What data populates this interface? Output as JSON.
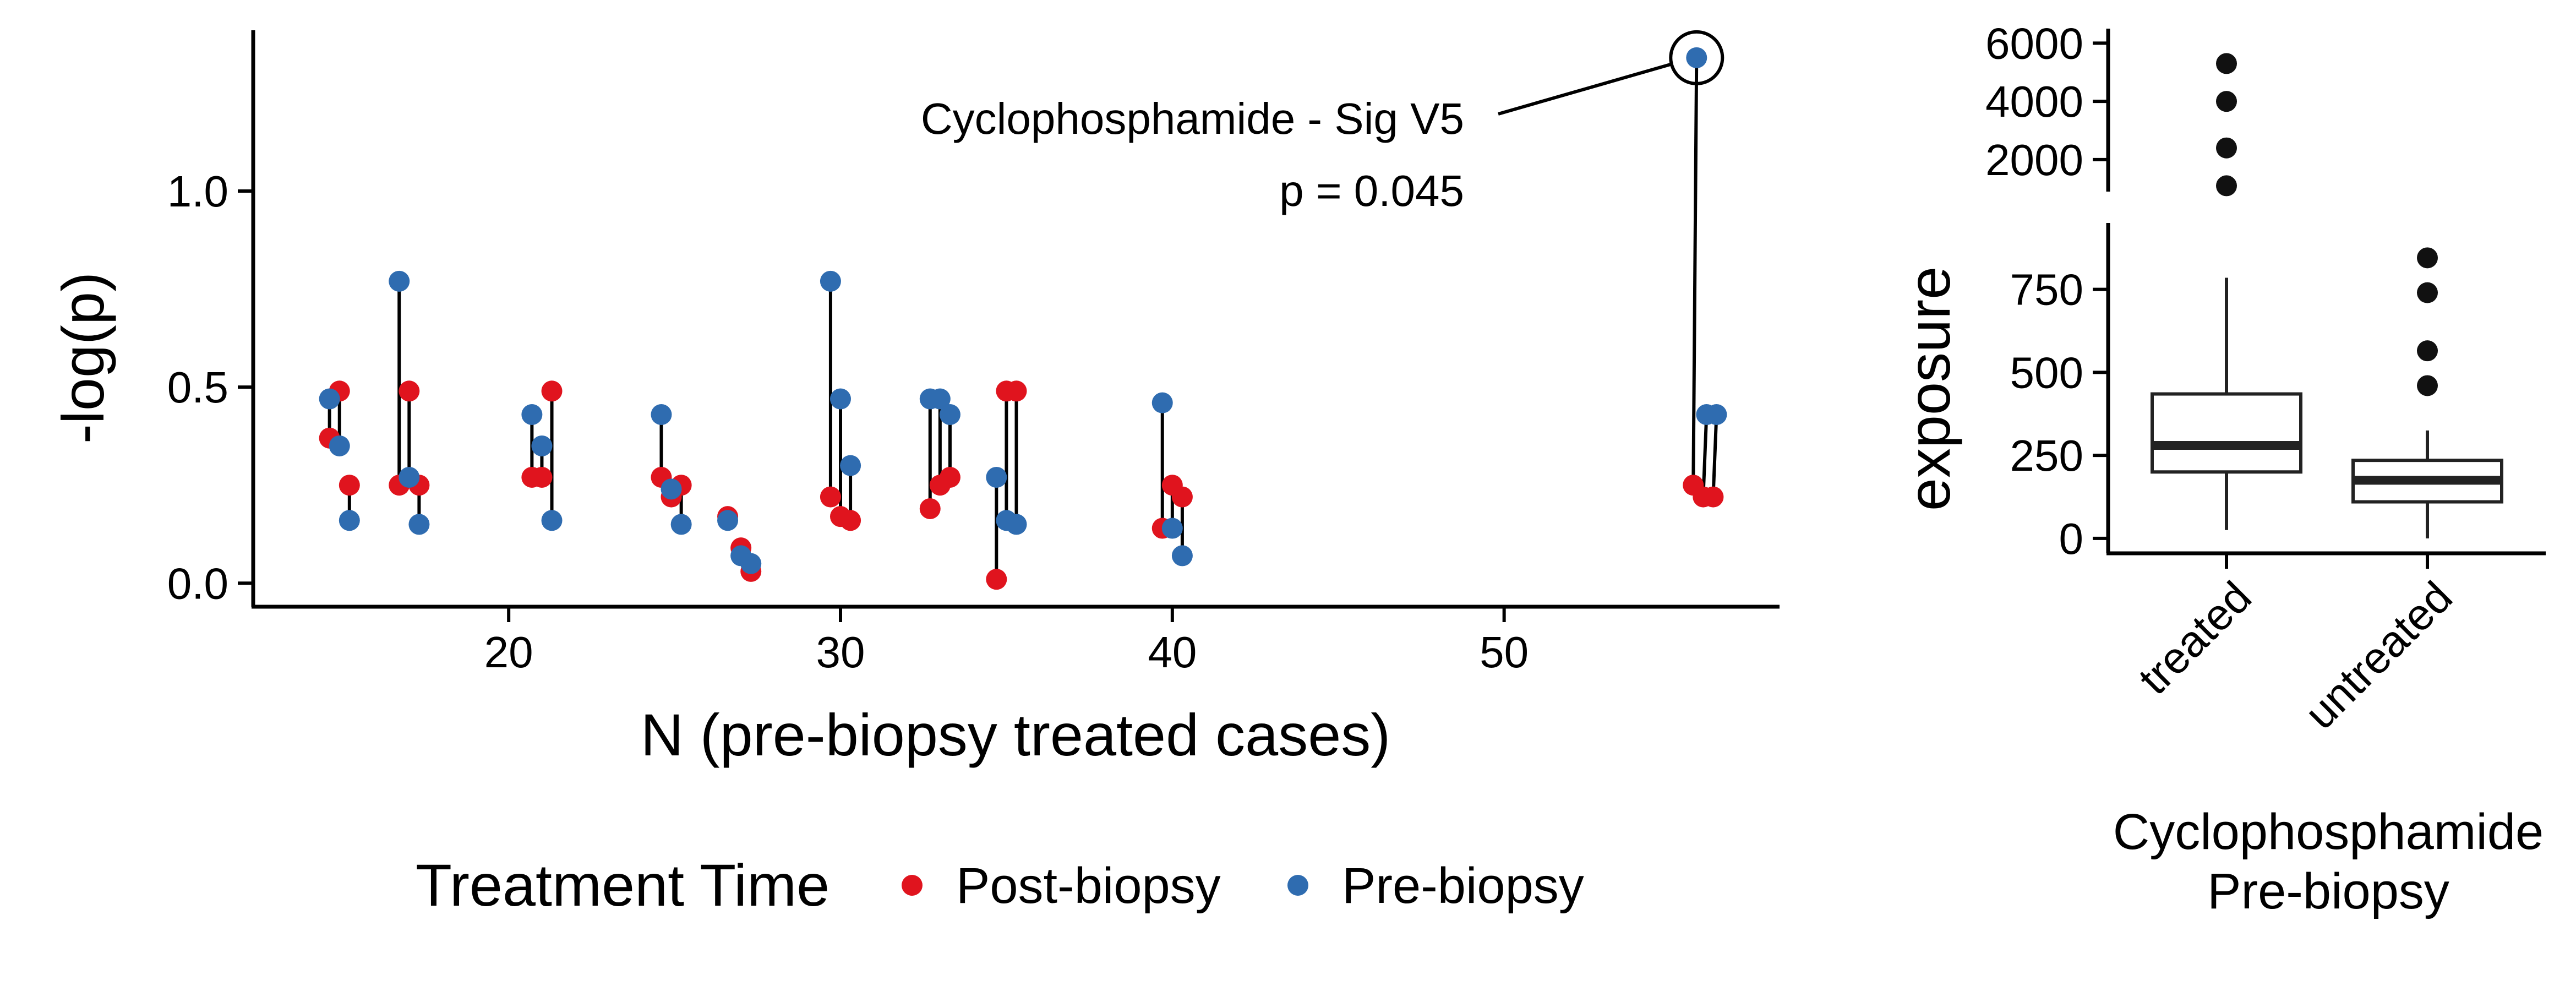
{
  "colors": {
    "post": "#e0141e",
    "pre": "#2f6cb0"
  },
  "legend": {
    "title": "Treatment Time",
    "items": [
      {
        "label": "Post-biopsy",
        "color": "#e0141e"
      },
      {
        "label": "Pre-biopsy",
        "color": "#2f6cb0"
      }
    ]
  },
  "chart_data": [
    {
      "type": "scatter",
      "title": "",
      "xlabel": "N (pre-biopsy treated cases)",
      "ylabel": "-log(p)",
      "xlim": [
        12.3,
        58.3
      ],
      "ylim": [
        -0.06,
        1.41
      ],
      "xticks": [
        "20",
        "30",
        "40",
        "50"
      ],
      "yticks": [
        "0.0",
        "0.5",
        "1.0"
      ],
      "grid": false,
      "legend_position": "bottom",
      "annotation": {
        "point": [
          55.8,
          1.34
        ],
        "line1": "Cyclophosphamide - Sig V5",
        "line2": "p = 0.045"
      },
      "series": [
        {
          "name": "Post-biopsy",
          "points": [
            [
              14.6,
              0.37
            ],
            [
              14.9,
              0.49
            ],
            [
              15.2,
              0.25
            ],
            [
              16.7,
              0.25
            ],
            [
              17.0,
              0.49
            ],
            [
              17.3,
              0.25
            ],
            [
              20.7,
              0.27
            ],
            [
              21.0,
              0.27
            ],
            [
              21.3,
              0.49
            ],
            [
              24.6,
              0.27
            ],
            [
              24.9,
              0.22
            ],
            [
              25.2,
              0.25
            ],
            [
              26.6,
              0.17
            ],
            [
              27.0,
              0.09
            ],
            [
              27.3,
              0.03
            ],
            [
              29.7,
              0.22
            ],
            [
              30.0,
              0.17
            ],
            [
              30.3,
              0.16
            ],
            [
              32.7,
              0.19
            ],
            [
              33.0,
              0.25
            ],
            [
              33.3,
              0.27
            ],
            [
              34.7,
              0.01
            ],
            [
              35.0,
              0.49
            ],
            [
              35.3,
              0.49
            ],
            [
              39.7,
              0.14
            ],
            [
              40.0,
              0.25
            ],
            [
              40.3,
              0.22
            ],
            [
              55.7,
              0.25
            ],
            [
              56.0,
              0.22
            ],
            [
              56.3,
              0.22
            ]
          ]
        },
        {
          "name": "Pre-biopsy",
          "points": [
            [
              14.6,
              0.47
            ],
            [
              14.9,
              0.35
            ],
            [
              15.2,
              0.16
            ],
            [
              16.7,
              0.77
            ],
            [
              17.0,
              0.27
            ],
            [
              17.3,
              0.15
            ],
            [
              20.7,
              0.43
            ],
            [
              21.0,
              0.35
            ],
            [
              21.3,
              0.16
            ],
            [
              24.6,
              0.43
            ],
            [
              24.9,
              0.24
            ],
            [
              25.2,
              0.15
            ],
            [
              26.6,
              0.16
            ],
            [
              27.0,
              0.07
            ],
            [
              27.3,
              0.05
            ],
            [
              29.7,
              0.77
            ],
            [
              30.0,
              0.47
            ],
            [
              30.3,
              0.3
            ],
            [
              32.7,
              0.47
            ],
            [
              33.0,
              0.47
            ],
            [
              33.3,
              0.43
            ],
            [
              34.7,
              0.27
            ],
            [
              35.0,
              0.16
            ],
            [
              35.3,
              0.15
            ],
            [
              39.7,
              0.46
            ],
            [
              40.0,
              0.14
            ],
            [
              40.3,
              0.07
            ],
            [
              55.8,
              1.34
            ],
            [
              56.1,
              0.43
            ],
            [
              56.4,
              0.43
            ]
          ]
        }
      ],
      "pairs": [
        [
          0,
          0
        ],
        [
          1,
          1
        ],
        [
          2,
          2
        ],
        [
          3,
          3
        ],
        [
          4,
          4
        ],
        [
          5,
          5
        ],
        [
          6,
          6
        ],
        [
          7,
          7
        ],
        [
          8,
          8
        ],
        [
          9,
          9
        ],
        [
          10,
          10
        ],
        [
          11,
          11
        ],
        [
          12,
          12
        ],
        [
          13,
          13
        ],
        [
          14,
          14
        ],
        [
          15,
          15
        ],
        [
          16,
          16
        ],
        [
          17,
          17
        ],
        [
          18,
          18
        ],
        [
          19,
          19
        ],
        [
          20,
          20
        ],
        [
          21,
          21
        ],
        [
          22,
          22
        ],
        [
          23,
          23
        ],
        [
          24,
          24
        ],
        [
          25,
          25
        ],
        [
          26,
          26
        ],
        [
          27,
          27
        ],
        [
          28,
          28
        ],
        [
          29,
          29
        ]
      ]
    },
    {
      "type": "box",
      "title": "",
      "xlabel": [
        "Cyclophosphamide",
        "Pre-biopsy"
      ],
      "ylabel": "exposure",
      "categories": [
        "treated",
        "untreated"
      ],
      "broken_axis": true,
      "upper_ylim": [
        900,
        6500
      ],
      "upper_yticks": [
        "2000",
        "4000",
        "6000"
      ],
      "lower_ylim": [
        -45,
        950
      ],
      "lower_yticks": [
        "0",
        "250",
        "500",
        "750"
      ],
      "boxes": [
        {
          "category": "treated",
          "whisker_low": 25,
          "q1": 200,
          "median": 280,
          "q3": 435,
          "whisker_high": 785,
          "outliers": [
            1100,
            2400,
            4000,
            5300
          ]
        },
        {
          "category": "untreated",
          "whisker_low": 0,
          "q1": 110,
          "median": 175,
          "q3": 235,
          "whisker_high": 325,
          "outliers": [
            460,
            565,
            740,
            845
          ]
        }
      ]
    }
  ]
}
